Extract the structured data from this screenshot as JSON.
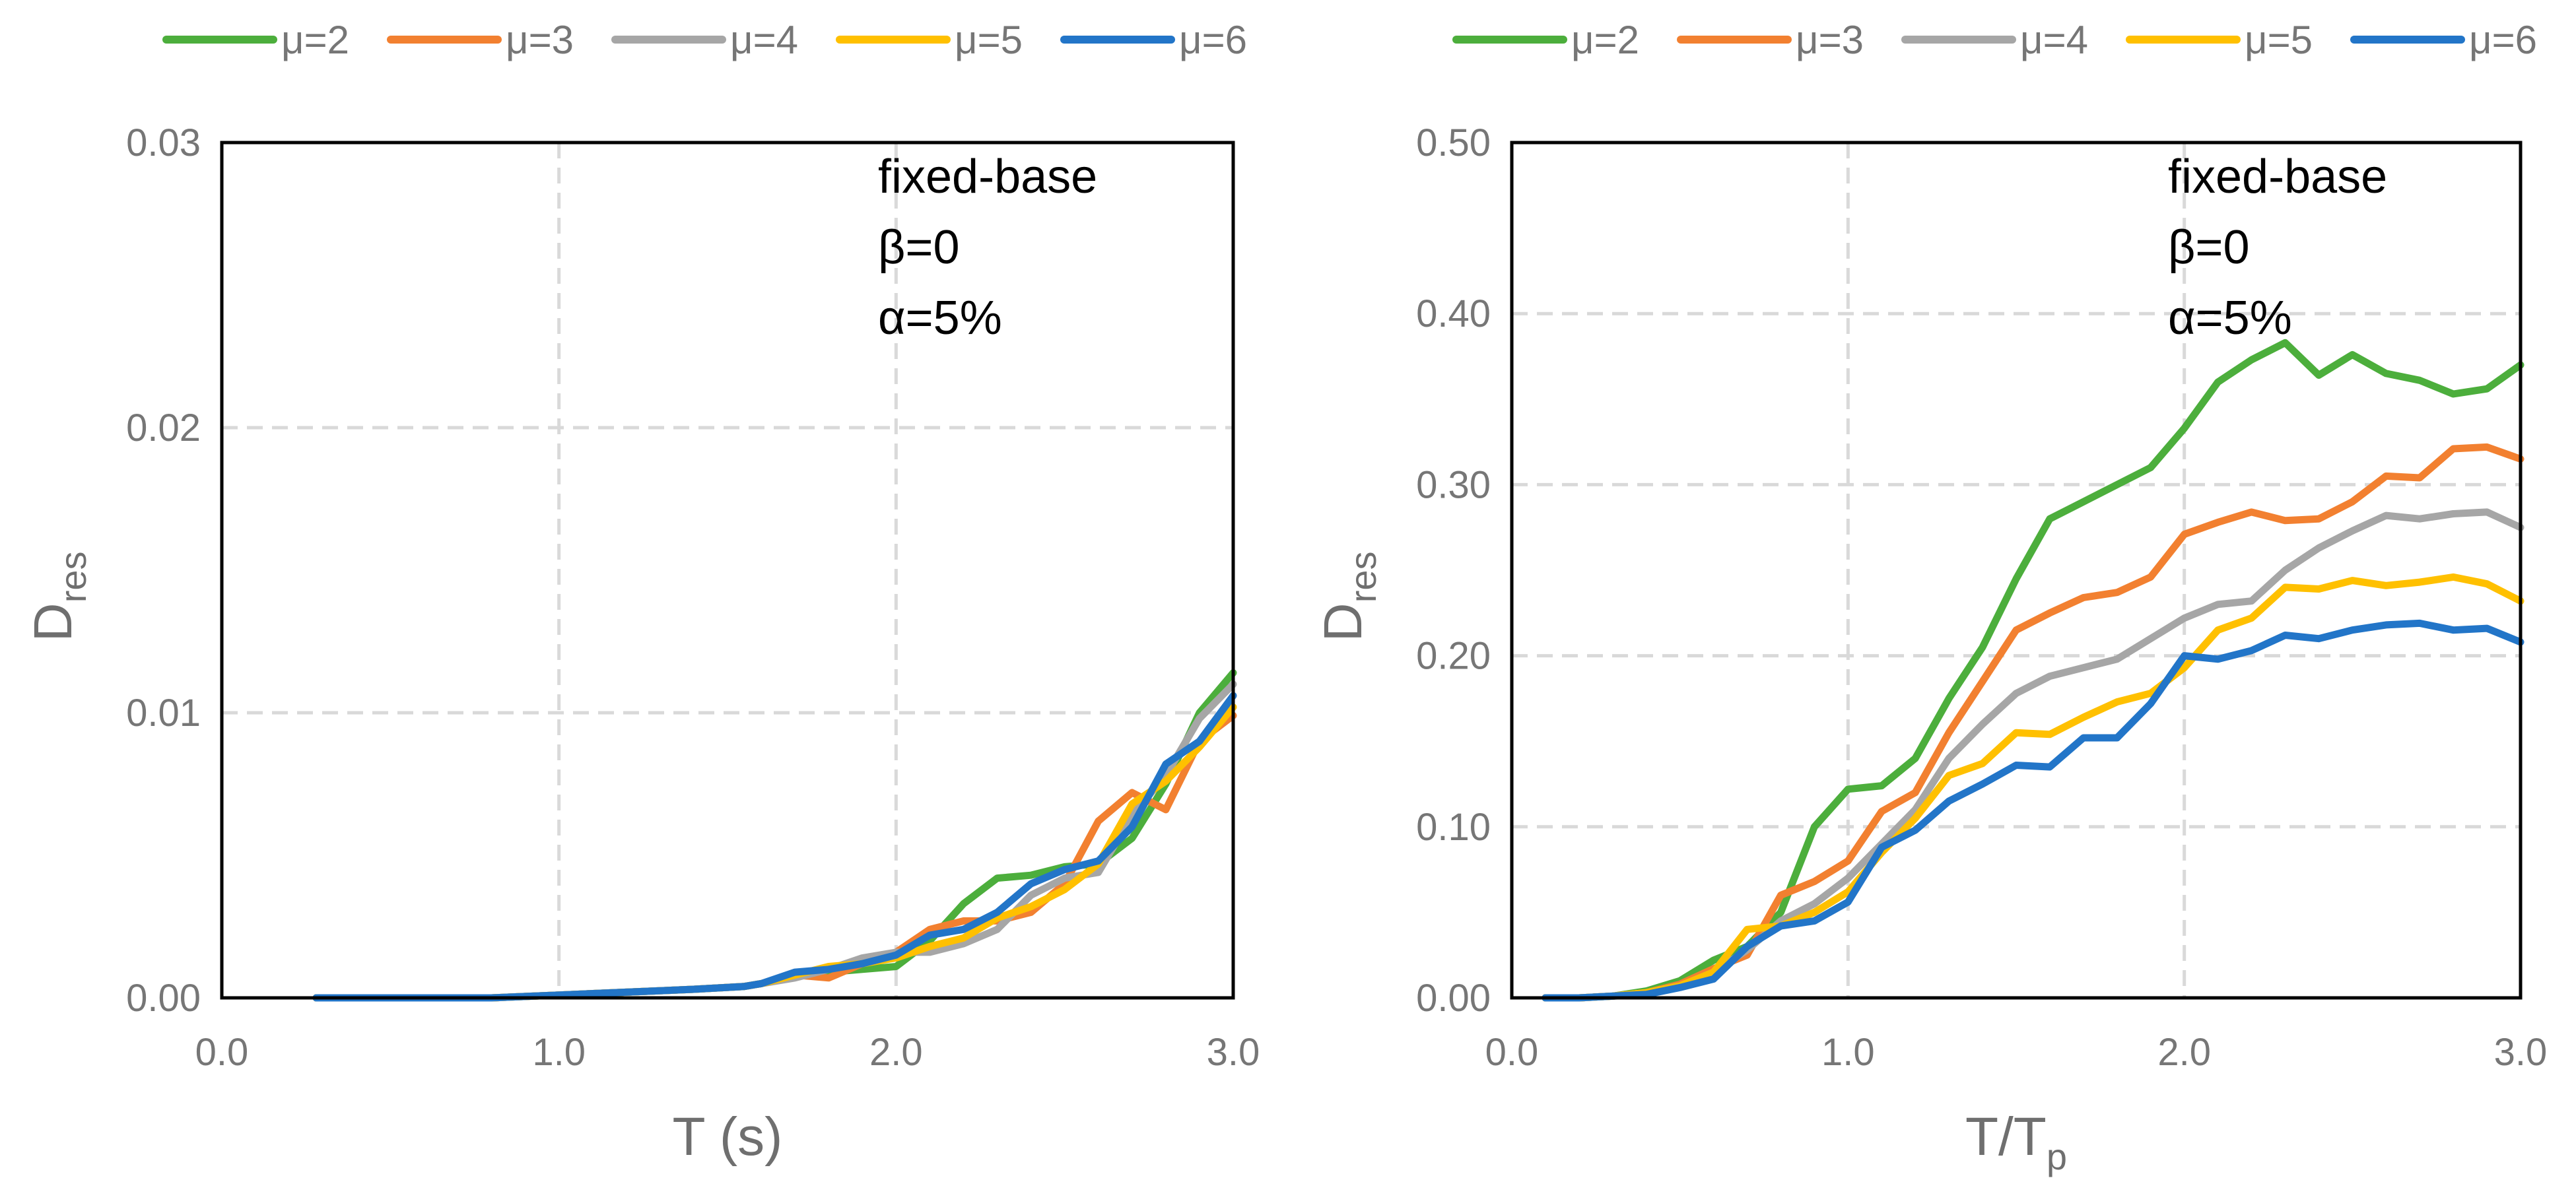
{
  "colors": {
    "mu2": "#4cae3c",
    "mu3": "#f28030",
    "mu4": "#a6a6a6",
    "mu5": "#ffc000",
    "mu6": "#2275c8"
  },
  "chart_data": [
    {
      "type": "line",
      "title": "",
      "xlabel": "T (s)",
      "ylabel": {
        "main": "D",
        "sub": "res"
      },
      "xlim": [
        0,
        3.0
      ],
      "ylim": [
        0,
        0.03
      ],
      "xticks": [
        "0.0",
        "1.0",
        "2.0",
        "3.0"
      ],
      "yticks": [
        "0.00",
        "0.01",
        "0.02",
        "0.03"
      ],
      "grid": true,
      "legend_position": "top",
      "annotations": [
        "fixed-base",
        "β=0",
        "α=5%"
      ],
      "series": [
        {
          "name": "μ=2",
          "color_key": "mu2",
          "x": [
            0.28,
            0.5,
            0.8,
            1.0,
            1.2,
            1.4,
            1.55,
            1.6,
            1.7,
            1.8,
            1.9,
            2.0,
            2.1,
            2.2,
            2.3,
            2.4,
            2.5,
            2.6,
            2.7,
            2.8,
            2.9,
            3.0
          ],
          "y": [
            0,
            0,
            0,
            0.0001,
            0.0002,
            0.0003,
            0.0004,
            0.0005,
            0.0008,
            0.0009,
            0.001,
            0.0011,
            0.002,
            0.0033,
            0.0042,
            0.0043,
            0.0046,
            0.0047,
            0.0056,
            0.0075,
            0.01,
            0.0114
          ]
        },
        {
          "name": "μ=3",
          "color_key": "mu3",
          "x": [
            0.28,
            0.5,
            0.8,
            1.0,
            1.2,
            1.4,
            1.55,
            1.6,
            1.7,
            1.8,
            1.9,
            2.0,
            2.1,
            2.2,
            2.3,
            2.4,
            2.5,
            2.6,
            2.7,
            2.8,
            2.9,
            3.0
          ],
          "y": [
            0,
            0,
            0,
            0.0001,
            0.0002,
            0.0003,
            0.0004,
            0.0005,
            0.0008,
            0.0007,
            0.0012,
            0.0016,
            0.0024,
            0.0027,
            0.0027,
            0.003,
            0.004,
            0.0062,
            0.0072,
            0.0066,
            0.009,
            0.0099
          ]
        },
        {
          "name": "μ=4",
          "color_key": "mu4",
          "x": [
            0.28,
            0.5,
            0.8,
            1.0,
            1.2,
            1.4,
            1.55,
            1.6,
            1.7,
            1.8,
            1.9,
            2.0,
            2.1,
            2.2,
            2.3,
            2.4,
            2.5,
            2.6,
            2.7,
            2.8,
            2.9,
            3.0
          ],
          "y": [
            0,
            0,
            0,
            0.0001,
            0.0002,
            0.0003,
            0.0004,
            0.0005,
            0.0007,
            0.001,
            0.0014,
            0.0016,
            0.0016,
            0.0019,
            0.0024,
            0.0036,
            0.0042,
            0.0044,
            0.0064,
            0.0078,
            0.0098,
            0.011
          ]
        },
        {
          "name": "μ=5",
          "color_key": "mu5",
          "x": [
            0.28,
            0.5,
            0.8,
            1.0,
            1.2,
            1.4,
            1.55,
            1.6,
            1.7,
            1.8,
            1.9,
            2.0,
            2.1,
            2.2,
            2.3,
            2.4,
            2.5,
            2.6,
            2.7,
            2.8,
            2.9,
            3.0
          ],
          "y": [
            0,
            0,
            0,
            0.0001,
            0.0002,
            0.0003,
            0.0004,
            0.0005,
            0.0008,
            0.0011,
            0.0012,
            0.0014,
            0.0018,
            0.0021,
            0.0028,
            0.0032,
            0.0038,
            0.0047,
            0.0068,
            0.0076,
            0.0088,
            0.0102
          ]
        },
        {
          "name": "μ=6",
          "color_key": "mu6",
          "x": [
            0.28,
            0.5,
            0.8,
            1.0,
            1.2,
            1.4,
            1.55,
            1.6,
            1.7,
            1.8,
            1.9,
            2.0,
            2.1,
            2.2,
            2.3,
            2.4,
            2.5,
            2.6,
            2.7,
            2.8,
            2.9,
            3.0
          ],
          "y": [
            0,
            0,
            0,
            0.0001,
            0.0002,
            0.0003,
            0.0004,
            0.0005,
            0.0009,
            0.001,
            0.0012,
            0.0015,
            0.0022,
            0.0024,
            0.003,
            0.004,
            0.0045,
            0.0048,
            0.006,
            0.0082,
            0.009,
            0.0106
          ]
        }
      ]
    },
    {
      "type": "line",
      "title": "",
      "xlabel": {
        "main": "T/T",
        "sub": "p"
      },
      "ylabel": {
        "main": "D",
        "sub": "res"
      },
      "xlim": [
        0,
        3.0
      ],
      "ylim": [
        0,
        0.5
      ],
      "xticks": [
        "0.0",
        "1.0",
        "2.0",
        "3.0"
      ],
      "yticks": [
        "0.00",
        "0.10",
        "0.20",
        "0.30",
        "0.40",
        "0.50"
      ],
      "grid": true,
      "legend_position": "top",
      "annotations": [
        "fixed-base",
        "β=0",
        "α=5%"
      ],
      "series": [
        {
          "name": "μ=2",
          "color_key": "mu2",
          "x": [
            0.1,
            0.2,
            0.3,
            0.4,
            0.5,
            0.6,
            0.7,
            0.8,
            0.9,
            1.0,
            1.1,
            1.2,
            1.3,
            1.4,
            1.5,
            1.6,
            1.7,
            1.8,
            1.9,
            2.0,
            2.1,
            2.2,
            2.3,
            2.4,
            2.5,
            2.6,
            2.7,
            2.8,
            2.9,
            3.0
          ],
          "y": [
            0,
            0,
            0.001,
            0.004,
            0.01,
            0.022,
            0.03,
            0.05,
            0.1,
            0.122,
            0.124,
            0.14,
            0.175,
            0.205,
            0.245,
            0.28,
            0.29,
            0.3,
            0.31,
            0.333,
            0.36,
            0.373,
            0.383,
            0.364,
            0.376,
            0.365,
            0.361,
            0.353,
            0.356,
            0.37
          ]
        },
        {
          "name": "μ=3",
          "color_key": "mu3",
          "x": [
            0.1,
            0.2,
            0.3,
            0.4,
            0.5,
            0.6,
            0.7,
            0.8,
            0.9,
            1.0,
            1.1,
            1.2,
            1.3,
            1.4,
            1.5,
            1.6,
            1.7,
            1.8,
            1.9,
            2.0,
            2.1,
            2.2,
            2.3,
            2.4,
            2.5,
            2.6,
            2.7,
            2.8,
            2.9,
            3.0
          ],
          "y": [
            0,
            0,
            0.001,
            0.003,
            0.008,
            0.017,
            0.025,
            0.06,
            0.068,
            0.08,
            0.109,
            0.12,
            0.155,
            0.185,
            0.215,
            0.225,
            0.234,
            0.237,
            0.246,
            0.271,
            0.278,
            0.284,
            0.279,
            0.28,
            0.29,
            0.305,
            0.304,
            0.321,
            0.322,
            0.315
          ]
        },
        {
          "name": "μ=4",
          "color_key": "mu4",
          "x": [
            0.1,
            0.2,
            0.3,
            0.4,
            0.5,
            0.6,
            0.7,
            0.8,
            0.9,
            1.0,
            1.1,
            1.2,
            1.3,
            1.4,
            1.5,
            1.6,
            1.7,
            1.8,
            1.9,
            2.0,
            2.1,
            2.2,
            2.3,
            2.4,
            2.5,
            2.6,
            2.7,
            2.8,
            2.9,
            3.0
          ],
          "y": [
            0,
            0,
            0.001,
            0.003,
            0.007,
            0.015,
            0.028,
            0.045,
            0.055,
            0.07,
            0.09,
            0.11,
            0.14,
            0.16,
            0.178,
            0.188,
            0.193,
            0.198,
            0.21,
            0.222,
            0.23,
            0.232,
            0.25,
            0.263,
            0.273,
            0.282,
            0.28,
            0.283,
            0.284,
            0.275
          ]
        },
        {
          "name": "μ=5",
          "color_key": "mu5",
          "x": [
            0.1,
            0.2,
            0.3,
            0.4,
            0.5,
            0.6,
            0.7,
            0.8,
            0.9,
            1.0,
            1.1,
            1.2,
            1.3,
            1.4,
            1.5,
            1.6,
            1.7,
            1.8,
            1.9,
            2.0,
            2.1,
            2.2,
            2.3,
            2.4,
            2.5,
            2.6,
            2.7,
            2.8,
            2.9,
            3.0
          ],
          "y": [
            0,
            0,
            0.001,
            0.003,
            0.007,
            0.015,
            0.04,
            0.042,
            0.05,
            0.062,
            0.085,
            0.105,
            0.13,
            0.137,
            0.155,
            0.154,
            0.164,
            0.173,
            0.178,
            0.193,
            0.215,
            0.222,
            0.24,
            0.239,
            0.244,
            0.241,
            0.243,
            0.246,
            0.242,
            0.232
          ]
        },
        {
          "name": "μ=6",
          "color_key": "mu6",
          "x": [
            0.1,
            0.2,
            0.3,
            0.4,
            0.5,
            0.6,
            0.7,
            0.8,
            0.9,
            1.0,
            1.1,
            1.2,
            1.3,
            1.4,
            1.5,
            1.6,
            1.7,
            1.8,
            1.9,
            2.0,
            2.1,
            2.2,
            2.3,
            2.4,
            2.5,
            2.6,
            2.7,
            2.8,
            2.9,
            3.0
          ],
          "y": [
            0,
            0,
            0.001,
            0.002,
            0.006,
            0.011,
            0.03,
            0.042,
            0.045,
            0.056,
            0.088,
            0.098,
            0.115,
            0.125,
            0.136,
            0.135,
            0.152,
            0.152,
            0.172,
            0.2,
            0.198,
            0.203,
            0.212,
            0.21,
            0.215,
            0.218,
            0.219,
            0.215,
            0.216,
            0.208
          ]
        }
      ]
    }
  ]
}
